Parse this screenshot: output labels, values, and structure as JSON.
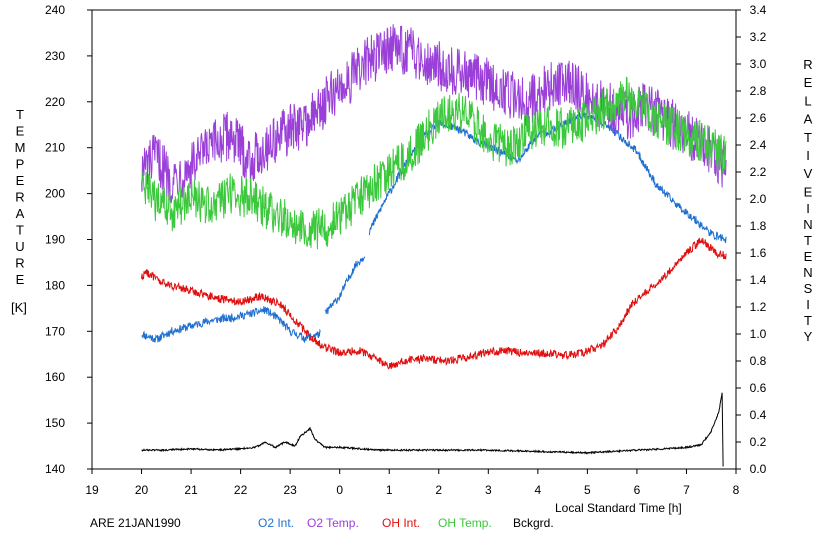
{
  "chart_data": {
    "type": "line",
    "xlabel": "Local Standard Time [h]",
    "x_ticks": [
      "19",
      "20",
      "21",
      "22",
      "23",
      "0",
      "1",
      "2",
      "3",
      "4",
      "5",
      "6",
      "7",
      "8"
    ],
    "xlim": [
      19,
      32
    ],
    "y_left": {
      "letters": [
        "T",
        "E",
        "M",
        "P",
        "E",
        "R",
        "A",
        "T",
        "U",
        "R",
        "E"
      ],
      "unit": "[K]",
      "ticks": [
        "140",
        "150",
        "160",
        "170",
        "180",
        "190",
        "200",
        "210",
        "220",
        "230",
        "240"
      ],
      "ylim": [
        140,
        240
      ]
    },
    "y_right": {
      "letters1": [
        "R",
        "E",
        "L",
        "A",
        "T",
        "I",
        "V",
        "E"
      ],
      "letters2": [
        "I",
        "N",
        "T",
        "E",
        "N",
        "S",
        "I",
        "T",
        "Y"
      ],
      "ticks": [
        "0.0",
        "0.2",
        "0.4",
        "0.6",
        "0.8",
        "1.0",
        "1.2",
        "1.4",
        "1.6",
        "1.8",
        "2.0",
        "2.2",
        "2.4",
        "2.6",
        "2.8",
        "3.0",
        "3.2",
        "3.4"
      ],
      "ylim": [
        0,
        3.4
      ]
    },
    "station": "ARE 21JAN1990",
    "series": [
      {
        "name": "O2 Int.",
        "color": "#1f6fd0",
        "axis": "right",
        "points": [
          [
            20.0,
            1.0
          ],
          [
            20.3,
            0.96
          ],
          [
            20.6,
            1.02
          ],
          [
            21.0,
            1.06
          ],
          [
            21.4,
            1.1
          ],
          [
            21.8,
            1.12
          ],
          [
            22.2,
            1.15
          ],
          [
            22.5,
            1.18
          ],
          [
            22.8,
            1.1
          ],
          [
            23.0,
            1.02
          ],
          [
            23.3,
            0.97
          ],
          [
            23.6,
            1.0
          ],
          [
            23.7,
            1.15
          ],
          [
            24.0,
            1.28
          ],
          [
            24.3,
            1.5
          ],
          [
            24.5,
            1.58
          ],
          [
            24.6,
            1.76
          ],
          [
            24.9,
            1.98
          ],
          [
            25.3,
            2.24
          ],
          [
            25.7,
            2.46
          ],
          [
            26.0,
            2.56
          ],
          [
            26.4,
            2.52
          ],
          [
            26.8,
            2.42
          ],
          [
            27.2,
            2.36
          ],
          [
            27.6,
            2.28
          ],
          [
            28.0,
            2.48
          ],
          [
            28.4,
            2.52
          ],
          [
            28.8,
            2.62
          ],
          [
            29.2,
            2.6
          ],
          [
            29.6,
            2.48
          ],
          [
            30.0,
            2.35
          ],
          [
            30.4,
            2.1
          ],
          [
            30.8,
            1.96
          ],
          [
            31.2,
            1.84
          ],
          [
            31.5,
            1.74
          ],
          [
            31.8,
            1.7
          ]
        ]
      },
      {
        "name": "O2 Temp.",
        "color": "#9a40d8",
        "axis": "left",
        "points": [
          [
            20.0,
            205
          ],
          [
            20.3,
            208
          ],
          [
            20.6,
            203
          ],
          [
            21.0,
            206
          ],
          [
            21.4,
            210
          ],
          [
            21.8,
            213
          ],
          [
            22.2,
            207
          ],
          [
            22.6,
            211
          ],
          [
            23.0,
            214
          ],
          [
            23.4,
            216
          ],
          [
            23.8,
            221
          ],
          [
            24.2,
            225
          ],
          [
            24.6,
            229
          ],
          [
            25.0,
            232
          ],
          [
            25.4,
            231
          ],
          [
            25.8,
            229
          ],
          [
            26.2,
            227
          ],
          [
            26.6,
            226
          ],
          [
            27.0,
            224
          ],
          [
            27.4,
            222
          ],
          [
            27.8,
            220
          ],
          [
            28.2,
            223
          ],
          [
            28.6,
            225
          ],
          [
            29.0,
            221
          ],
          [
            29.4,
            219
          ],
          [
            29.8,
            217
          ],
          [
            30.2,
            219
          ],
          [
            30.6,
            216
          ],
          [
            31.0,
            213
          ],
          [
            31.4,
            210
          ],
          [
            31.8,
            206
          ]
        ]
      },
      {
        "name": "OH Int.",
        "color": "#e01010",
        "axis": "right",
        "points": [
          [
            20.0,
            1.42
          ],
          [
            20.1,
            1.46
          ],
          [
            20.4,
            1.38
          ],
          [
            20.8,
            1.34
          ],
          [
            21.2,
            1.3
          ],
          [
            21.6,
            1.26
          ],
          [
            22.0,
            1.24
          ],
          [
            22.4,
            1.28
          ],
          [
            22.8,
            1.22
          ],
          [
            23.2,
            1.06
          ],
          [
            23.6,
            0.92
          ],
          [
            24.0,
            0.86
          ],
          [
            24.4,
            0.88
          ],
          [
            24.8,
            0.8
          ],
          [
            25.0,
            0.76
          ],
          [
            25.3,
            0.8
          ],
          [
            25.7,
            0.82
          ],
          [
            26.1,
            0.8
          ],
          [
            26.5,
            0.82
          ],
          [
            26.9,
            0.86
          ],
          [
            27.3,
            0.88
          ],
          [
            27.7,
            0.86
          ],
          [
            28.1,
            0.86
          ],
          [
            28.5,
            0.84
          ],
          [
            28.9,
            0.86
          ],
          [
            29.3,
            0.92
          ],
          [
            29.6,
            1.04
          ],
          [
            29.9,
            1.22
          ],
          [
            30.3,
            1.34
          ],
          [
            30.7,
            1.48
          ],
          [
            31.0,
            1.6
          ],
          [
            31.3,
            1.7
          ],
          [
            31.6,
            1.6
          ],
          [
            31.8,
            1.58
          ]
        ]
      },
      {
        "name": "OH Temp.",
        "color": "#3cc83c",
        "axis": "left",
        "points": [
          [
            20.0,
            202
          ],
          [
            20.3,
            198
          ],
          [
            20.6,
            196
          ],
          [
            21.0,
            199
          ],
          [
            21.4,
            197
          ],
          [
            21.8,
            200
          ],
          [
            22.2,
            199
          ],
          [
            22.6,
            196
          ],
          [
            23.0,
            194
          ],
          [
            23.4,
            192
          ],
          [
            23.8,
            193
          ],
          [
            24.2,
            197
          ],
          [
            24.6,
            201
          ],
          [
            25.0,
            205
          ],
          [
            25.4,
            208
          ],
          [
            25.8,
            214
          ],
          [
            26.2,
            218
          ],
          [
            26.6,
            217
          ],
          [
            27.0,
            212
          ],
          [
            27.4,
            210
          ],
          [
            27.8,
            213
          ],
          [
            28.2,
            215
          ],
          [
            28.6,
            214
          ],
          [
            29.0,
            216
          ],
          [
            29.4,
            219
          ],
          [
            29.8,
            221
          ],
          [
            30.2,
            218
          ],
          [
            30.6,
            215
          ],
          [
            31.0,
            213
          ],
          [
            31.4,
            211
          ],
          [
            31.8,
            208
          ]
        ]
      },
      {
        "name": "Bckgrd.",
        "color": "#000000",
        "axis": "right",
        "points": [
          [
            20.0,
            0.14
          ],
          [
            20.5,
            0.14
          ],
          [
            21.0,
            0.15
          ],
          [
            21.5,
            0.14
          ],
          [
            22.0,
            0.15
          ],
          [
            22.3,
            0.16
          ],
          [
            22.5,
            0.2
          ],
          [
            22.7,
            0.16
          ],
          [
            22.9,
            0.2
          ],
          [
            23.1,
            0.17
          ],
          [
            23.2,
            0.24
          ],
          [
            23.4,
            0.3
          ],
          [
            23.5,
            0.22
          ],
          [
            23.7,
            0.16
          ],
          [
            24.0,
            0.16
          ],
          [
            24.4,
            0.15
          ],
          [
            24.8,
            0.14
          ],
          [
            25.2,
            0.14
          ],
          [
            25.6,
            0.14
          ],
          [
            26.0,
            0.14
          ],
          [
            27.0,
            0.14
          ],
          [
            28.0,
            0.13
          ],
          [
            29.0,
            0.12
          ],
          [
            30.0,
            0.14
          ],
          [
            30.6,
            0.15
          ],
          [
            31.0,
            0.16
          ],
          [
            31.3,
            0.18
          ],
          [
            31.5,
            0.28
          ],
          [
            31.65,
            0.42
          ],
          [
            31.72,
            0.56
          ],
          [
            31.74,
            0.02
          ]
        ]
      }
    ]
  }
}
